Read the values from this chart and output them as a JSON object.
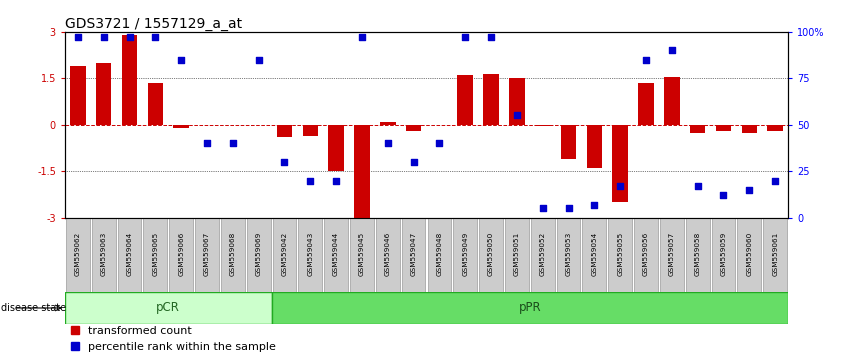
{
  "title": "GDS3721 / 1557129_a_at",
  "samples": [
    "GSM559062",
    "GSM559063",
    "GSM559064",
    "GSM559065",
    "GSM559066",
    "GSM559067",
    "GSM559068",
    "GSM559069",
    "GSM559042",
    "GSM559043",
    "GSM559044",
    "GSM559045",
    "GSM559046",
    "GSM559047",
    "GSM559048",
    "GSM559049",
    "GSM559050",
    "GSM559051",
    "GSM559052",
    "GSM559053",
    "GSM559054",
    "GSM559055",
    "GSM559056",
    "GSM559057",
    "GSM559058",
    "GSM559059",
    "GSM559060",
    "GSM559061"
  ],
  "transformed_counts": [
    1.9,
    2.0,
    2.9,
    1.35,
    -0.1,
    0.0,
    0.0,
    0.0,
    -0.4,
    -0.35,
    -1.5,
    -3.05,
    0.1,
    -0.2,
    0.0,
    1.6,
    1.65,
    1.5,
    -0.05,
    -1.1,
    -1.4,
    -2.5,
    1.35,
    1.55,
    -0.25,
    -0.2,
    -0.25,
    -0.2
  ],
  "percentile_ranks": [
    97,
    97,
    97,
    97,
    85,
    40,
    40,
    85,
    30,
    20,
    20,
    97,
    40,
    30,
    40,
    97,
    97,
    55,
    5,
    5,
    7,
    17,
    85,
    90,
    17,
    12,
    15,
    20
  ],
  "pCR_count": 8,
  "pPR_count": 20,
  "ylim": [
    -3,
    3
  ],
  "yticks_left": [
    -3,
    -1.5,
    0,
    1.5,
    3
  ],
  "yticks_right": [
    0,
    25,
    50,
    75,
    100
  ],
  "bar_color": "#cc0000",
  "dot_color": "#0000cc",
  "pCR_color_light": "#ccffcc",
  "pPR_color": "#66dd66",
  "zero_line_color": "#cc0000",
  "title_fontsize": 10,
  "tick_label_fontsize": 7,
  "legend_fontsize": 8,
  "dot_size": 22
}
